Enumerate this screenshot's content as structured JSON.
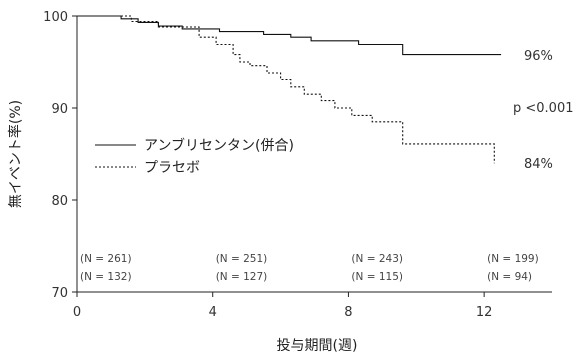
{
  "chart_data": {
    "type": "line",
    "title": "",
    "xlabel": "投与期間(週)",
    "ylabel": "無イベント率(%)",
    "xlim": [
      0,
      14
    ],
    "ylim": [
      70,
      100
    ],
    "xticks": [
      0,
      4,
      8,
      12
    ],
    "yticks": [
      70,
      80,
      90,
      100
    ],
    "grid": false,
    "legend_position": "center-left",
    "series": [
      {
        "name": "アンブリセンタン(併合)",
        "line_style": "solid",
        "color": "#111111",
        "x": [
          0,
          1.3,
          1.8,
          2.4,
          3.1,
          4.2,
          5.5,
          6.3,
          6.9,
          8.3,
          9.6,
          12.5
        ],
        "y": [
          100,
          99.7,
          99.3,
          98.9,
          98.6,
          98.3,
          98.0,
          97.7,
          97.3,
          96.9,
          95.8,
          95.8
        ],
        "end_label": "96%"
      },
      {
        "name": "プラセボ",
        "line_style": "dotted",
        "color": "#111111",
        "x": [
          0,
          1.6,
          2.4,
          3.6,
          4.1,
          4.6,
          4.8,
          5.1,
          5.6,
          6.0,
          6.3,
          6.7,
          7.2,
          7.6,
          8.1,
          8.7,
          9.6,
          12.2,
          12.3
        ],
        "y": [
          100,
          99.4,
          98.8,
          97.7,
          96.9,
          95.8,
          95.0,
          94.6,
          93.8,
          93.1,
          92.3,
          91.5,
          90.8,
          90.0,
          89.2,
          88.5,
          86.1,
          86.1,
          84.0
        ],
        "end_label": "84%"
      }
    ],
    "annotations": {
      "p_value": "p <0.001"
    },
    "at_risk": [
      {
        "x": [
          0,
          4,
          8,
          12
        ],
        "labels": [
          "(N = 261)",
          "(N = 251)",
          "(N = 243)",
          "(N = 199)"
        ]
      },
      {
        "x": [
          0,
          4,
          8,
          12
        ],
        "labels": [
          "(N = 132)",
          "(N = 127)",
          "(N = 115)",
          "(N = 94)"
        ]
      }
    ]
  }
}
